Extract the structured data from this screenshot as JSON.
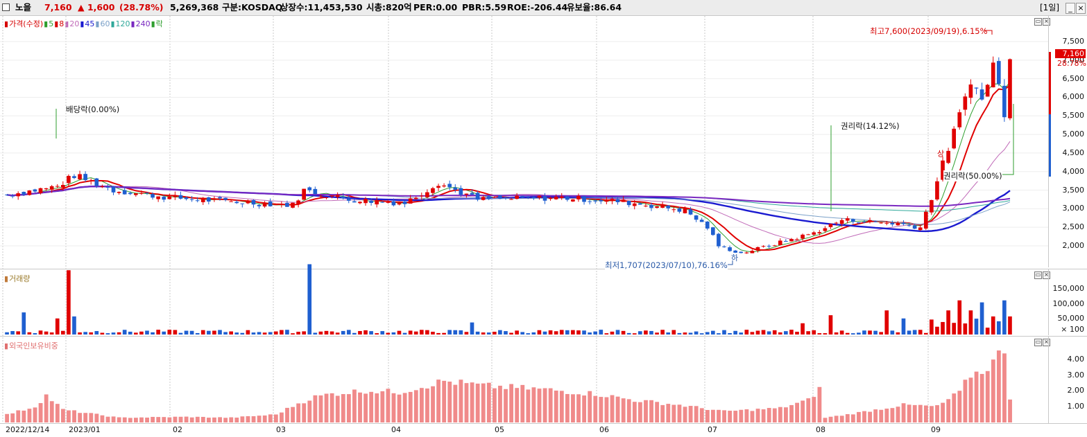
{
  "header": {
    "stock_name": "노을",
    "price": "7,160",
    "change": "▲ 1,600",
    "change_pct": "(28.78%)",
    "volume": "5,269,368",
    "market": "구분:KOSDAQ",
    "shares": "상장수:11,453,530",
    "market_cap": "시총:820억",
    "per": "PER:0.00",
    "pbr": "PBR:5.59",
    "roe": "ROE:-206.44",
    "float": "유보율:86.64",
    "period": "[1일]",
    "btn_restore": "_",
    "btn_close": "×"
  },
  "price_pane": {
    "legend": [
      {
        "label": "가격(수정)",
        "color": "#d60000"
      },
      {
        "label": "5",
        "color": "#2e9e2e"
      },
      {
        "label": "8",
        "color": "#d60000"
      },
      {
        "label": "20",
        "color": "#c06ab8"
      },
      {
        "label": "45",
        "color": "#1a1ad0"
      },
      {
        "label": "60",
        "color": "#7aa0c8"
      },
      {
        "label": "120",
        "color": "#2fa89a"
      },
      {
        "label": "240",
        "color": "#7a28c0"
      },
      {
        "label": "락",
        "color": "#2e9e2e"
      }
    ],
    "y_ticks": [
      "7,500",
      "7,000",
      "6,500",
      "6,000",
      "5,500",
      "5,000",
      "4,500",
      "4,000",
      "3,500",
      "3,000",
      "2,500",
      "2,000"
    ],
    "current_price_label": "7,160",
    "current_pct_label": "28.78%",
    "annotations": {
      "high": "최고7,600(2023/09/19),6.15%",
      "low": "최저1,707(2023/07/10),76.16%",
      "dividend": "배당락(0.00%)",
      "rights1": "권리락(14.12%)",
      "rights2": "권리락(50.00%)",
      "limit_up": "상",
      "limit_down": "하"
    }
  },
  "volume_pane": {
    "legend": "거래량",
    "y_ticks": [
      "150,000",
      "100,000",
      "50,000",
      "× 100"
    ]
  },
  "foreign_pane": {
    "legend": "외국인보유비중",
    "y_ticks": [
      "4.00",
      "3.00",
      "2.00",
      "1.00"
    ]
  },
  "x_axis": [
    "2022/12/14",
    "2023/01",
    "02",
    "03",
    "04",
    "05",
    "06",
    "07",
    "08",
    "09"
  ],
  "chart_data": {
    "type": "candlestick",
    "x": [
      "2022-12-14",
      "2023-01",
      "2023-02",
      "2023-03",
      "2023-04",
      "2023-05",
      "2023-06",
      "2023-07",
      "2023-08",
      "2023-09"
    ],
    "close_trend": [
      3300,
      3900,
      3200,
      3050,
      3100,
      3250,
      3100,
      1800,
      2600,
      7160
    ],
    "price_range": [
      1500,
      7600
    ],
    "volume_peak": 175000,
    "foreign_ratio_range": [
      0.1,
      4.7
    ],
    "ylabel": ""
  }
}
